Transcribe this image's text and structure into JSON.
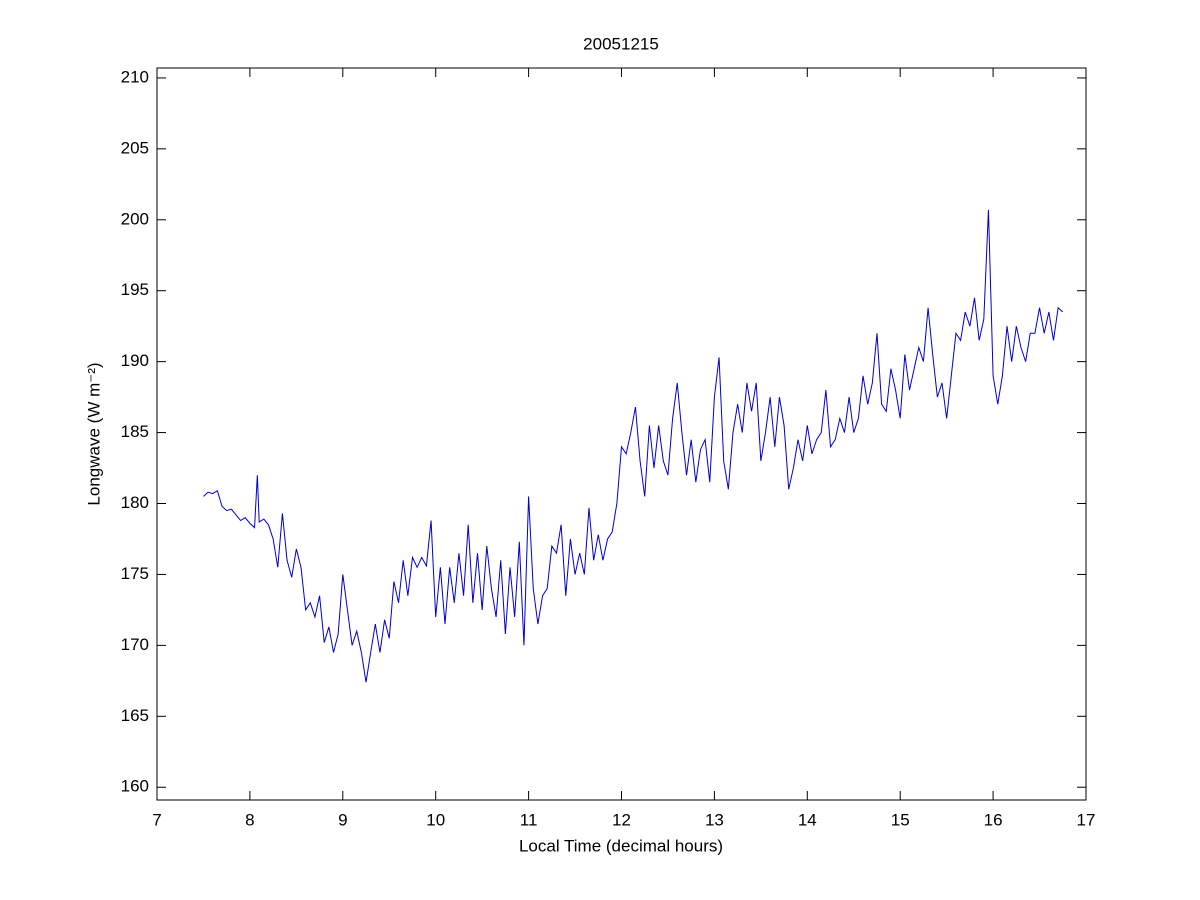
{
  "chart_data": {
    "type": "line",
    "title": "20051215",
    "xlabel": "Local Time (decimal hours)",
    "ylabel": "Longwave (W m⁻²)",
    "xlim": [
      7,
      17
    ],
    "xticks": [
      7,
      8,
      9,
      10,
      11,
      12,
      13,
      14,
      15,
      16,
      17
    ],
    "ylim": [
      159.1,
      210.7
    ],
    "yticks": [
      160,
      165,
      170,
      175,
      180,
      185,
      190,
      195,
      200,
      205,
      210
    ],
    "x": [
      7.5,
      7.55,
      7.6,
      7.65,
      7.7,
      7.75,
      7.8,
      7.85,
      7.9,
      7.95,
      8.0,
      8.05,
      8.08,
      8.1,
      8.15,
      8.2,
      8.25,
      8.3,
      8.35,
      8.4,
      8.45,
      8.5,
      8.55,
      8.6,
      8.65,
      8.7,
      8.75,
      8.8,
      8.85,
      8.9,
      8.95,
      9.0,
      9.05,
      9.1,
      9.15,
      9.2,
      9.25,
      9.3,
      9.35,
      9.4,
      9.45,
      9.5,
      9.55,
      9.6,
      9.65,
      9.7,
      9.75,
      9.8,
      9.85,
      9.9,
      9.95,
      10.0,
      10.05,
      10.1,
      10.15,
      10.2,
      10.25,
      10.3,
      10.35,
      10.4,
      10.45,
      10.5,
      10.55,
      10.6,
      10.65,
      10.7,
      10.75,
      10.8,
      10.85,
      10.9,
      10.95,
      11.0,
      11.05,
      11.1,
      11.15,
      11.2,
      11.25,
      11.3,
      11.35,
      11.4,
      11.45,
      11.5,
      11.55,
      11.6,
      11.65,
      11.7,
      11.75,
      11.8,
      11.85,
      11.9,
      11.95,
      12.0,
      12.05,
      12.1,
      12.15,
      12.2,
      12.25,
      12.3,
      12.35,
      12.4,
      12.45,
      12.5,
      12.55,
      12.6,
      12.65,
      12.7,
      12.75,
      12.8,
      12.85,
      12.9,
      12.95,
      13.0,
      13.05,
      13.1,
      13.15,
      13.2,
      13.25,
      13.3,
      13.35,
      13.4,
      13.45,
      13.5,
      13.55,
      13.6,
      13.65,
      13.7,
      13.75,
      13.8,
      13.85,
      13.9,
      13.95,
      14.0,
      14.05,
      14.1,
      14.15,
      14.2,
      14.25,
      14.3,
      14.35,
      14.4,
      14.45,
      14.5,
      14.55,
      14.6,
      14.65,
      14.7,
      14.75,
      14.8,
      14.85,
      14.9,
      14.95,
      15.0,
      15.05,
      15.1,
      15.15,
      15.2,
      15.25,
      15.3,
      15.35,
      15.4,
      15.45,
      15.5,
      15.55,
      15.6,
      15.65,
      15.7,
      15.75,
      15.8,
      15.85,
      15.9,
      15.95,
      16.0,
      16.05,
      16.1,
      16.15,
      16.2,
      16.25,
      16.3,
      16.35,
      16.4,
      16.45,
      16.5,
      16.55,
      16.6,
      16.65,
      16.7,
      16.75
    ],
    "series": [
      {
        "color": "#0000cc",
        "values": [
          180.5,
          180.8,
          180.7,
          180.9,
          179.8,
          179.5,
          179.6,
          179.2,
          178.8,
          179.0,
          178.6,
          178.3,
          182.0,
          178.7,
          178.9,
          178.5,
          177.5,
          175.5,
          179.3,
          176.0,
          174.8,
          176.8,
          175.5,
          172.5,
          173.0,
          172.0,
          173.5,
          170.2,
          171.3,
          169.5,
          170.8,
          175.0,
          172.5,
          170.0,
          171.0,
          169.5,
          167.4,
          169.5,
          171.5,
          169.5,
          171.8,
          170.5,
          174.5,
          173.0,
          176.0,
          173.5,
          176.2,
          175.5,
          176.2,
          175.6,
          178.8,
          172.0,
          175.5,
          171.5,
          175.5,
          173.0,
          176.5,
          173.5,
          178.5,
          173.0,
          176.5,
          172.5,
          177.0,
          174.0,
          172.0,
          176.0,
          170.8,
          175.5,
          172.0,
          177.3,
          170.0,
          180.5,
          174.0,
          171.5,
          173.5,
          174.0,
          177.0,
          176.5,
          178.5,
          173.5,
          177.5,
          175.0,
          176.5,
          175.0,
          179.7,
          176.0,
          177.8,
          176.0,
          177.5,
          178.0,
          180.0,
          184.0,
          183.5,
          185.0,
          186.8,
          183.0,
          180.5,
          185.5,
          182.5,
          185.5,
          183.0,
          182.0,
          186.0,
          188.5,
          185.0,
          182.0,
          184.5,
          181.5,
          183.8,
          184.5,
          181.5,
          187.5,
          190.3,
          183.0,
          181.0,
          185.0,
          187.0,
          185.0,
          188.5,
          186.5,
          188.5,
          183.0,
          185.0,
          187.5,
          184.0,
          187.5,
          185.5,
          181.0,
          182.5,
          184.5,
          183.0,
          185.5,
          183.5,
          184.5,
          185.0,
          188.0,
          184.0,
          184.5,
          186.0,
          185.0,
          187.5,
          185.0,
          186.0,
          189.0,
          187.0,
          188.5,
          192.0,
          187.0,
          186.5,
          189.5,
          188.0,
          186.0,
          190.5,
          188.0,
          189.5,
          191.0,
          190.0,
          193.8,
          190.5,
          187.5,
          188.5,
          186.0,
          189.0,
          192.0,
          191.5,
          193.5,
          192.5,
          194.5,
          191.5,
          193.0,
          200.7,
          189.0,
          187.0,
          189.0,
          192.5,
          190.0,
          192.5,
          191.0,
          190.0,
          192.0,
          192.0,
          193.8,
          192.0,
          193.5,
          191.5,
          193.8,
          193.5
        ]
      }
    ]
  }
}
